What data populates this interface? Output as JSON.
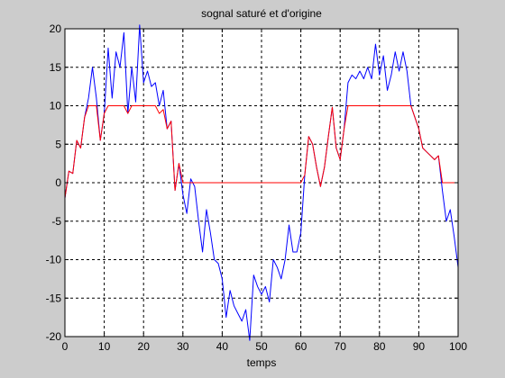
{
  "chart_data": {
    "type": "line",
    "title": "sognal saturé et d'origine",
    "xlabel": "temps",
    "ylabel": "",
    "xlim": [
      0,
      100
    ],
    "ylim": [
      -20,
      20
    ],
    "xticks": [
      0,
      10,
      20,
      30,
      40,
      50,
      60,
      70,
      80,
      90,
      100
    ],
    "yticks": [
      -20,
      -15,
      -10,
      -5,
      0,
      5,
      10,
      15,
      20
    ],
    "grid": true,
    "grid_style": "dashed",
    "colors": {
      "original": "#0000ff",
      "saturated": "#ff0000",
      "grid": "#000000",
      "background": "#ffffff",
      "figure": "#cccccc"
    },
    "x": [
      0,
      1,
      2,
      3,
      4,
      5,
      6,
      7,
      8,
      9,
      10,
      11,
      12,
      13,
      14,
      15,
      16,
      17,
      18,
      19,
      20,
      21,
      22,
      23,
      24,
      25,
      26,
      27,
      28,
      29,
      30,
      31,
      32,
      33,
      34,
      35,
      36,
      37,
      38,
      39,
      40,
      41,
      42,
      43,
      44,
      45,
      46,
      47,
      48,
      49,
      50,
      51,
      52,
      53,
      54,
      55,
      56,
      57,
      58,
      59,
      60,
      61,
      62,
      63,
      64,
      65,
      66,
      67,
      68,
      69,
      70,
      71,
      72,
      73,
      74,
      75,
      76,
      77,
      78,
      79,
      80,
      81,
      82,
      83,
      84,
      85,
      86,
      87,
      88,
      89,
      90,
      91,
      92,
      93,
      94,
      95,
      96,
      97,
      98,
      99,
      100
    ],
    "series": [
      {
        "values": [
          -2,
          1.5,
          1.2,
          5.5,
          4.5,
          8.5,
          11,
          15,
          11,
          5.5,
          9,
          17.5,
          11,
          17,
          15,
          19.5,
          9,
          15,
          10.5,
          20.5,
          13,
          14.5,
          12.5,
          13,
          10,
          12,
          7,
          8,
          -1,
          2.5,
          -1.5,
          -4,
          0.5,
          -0.5,
          -5,
          -9,
          -3.5,
          -6.5,
          -10,
          -10.5,
          -12.5,
          -17.5,
          -14,
          -16,
          -17,
          -18,
          -16.5,
          -20.5,
          -12,
          -13.5,
          -14.5,
          -13.5,
          -15.5,
          -10,
          -11,
          -12.5,
          -10,
          -5.5,
          -9,
          -9,
          -6.5,
          1,
          6,
          5,
          2,
          -0.5,
          2,
          6,
          9.8,
          4.5,
          3,
          7,
          13,
          14,
          13.5,
          14.5,
          13.5,
          15,
          13.5,
          18,
          14,
          16.5,
          12,
          14,
          17,
          14.5,
          17,
          14.5,
          10,
          8.5,
          7,
          4.5,
          4,
          3.5,
          3,
          3.5,
          -1,
          -5,
          -3.5,
          -7,
          -11
        ]
      },
      {
        "values": [
          -2,
          1.5,
          1.2,
          5.5,
          4.5,
          8.5,
          10,
          10,
          10,
          5.5,
          9,
          10,
          10,
          10,
          10,
          10,
          9,
          10,
          10,
          10,
          10,
          10,
          10,
          10,
          9,
          9.5,
          7,
          8,
          -1,
          2.5,
          0,
          0,
          0,
          0,
          0,
          0,
          0,
          0,
          0,
          0,
          0,
          0,
          0,
          0,
          0,
          0,
          0,
          0,
          0,
          0,
          0,
          0,
          0,
          0,
          0,
          0,
          0,
          0,
          0,
          0,
          0,
          1,
          6,
          5,
          2,
          -0.5,
          2,
          6,
          9.8,
          4.5,
          3,
          7,
          10,
          10,
          10,
          10,
          10,
          10,
          10,
          10,
          10,
          10,
          10,
          10,
          10,
          10,
          10,
          10,
          10,
          8.5,
          7,
          4.5,
          4,
          3.5,
          3,
          3.5,
          0,
          0,
          0,
          0,
          0
        ]
      }
    ]
  }
}
